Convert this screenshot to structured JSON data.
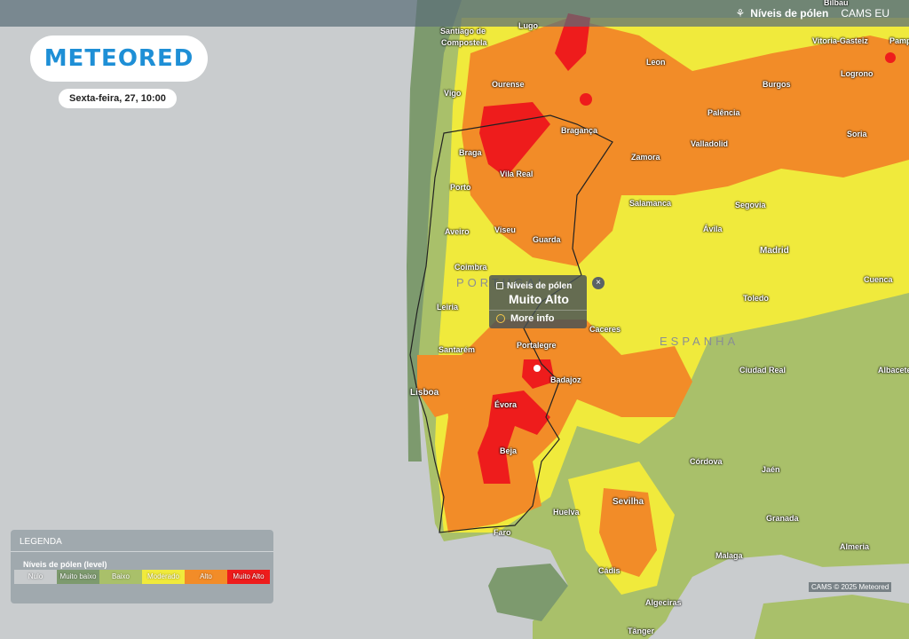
{
  "header": {
    "layer_name": "Níveis de pólen",
    "model": "CAMS EU",
    "pollen_icon": "pollen-icon"
  },
  "brand": {
    "logo": "METEORED"
  },
  "date_label": "Sexta-feira, 27, 10:00",
  "cities": [
    {
      "name": "Bilbau"
    },
    {
      "name": "Santiago de"
    },
    {
      "name": "Compostela"
    },
    {
      "name": "Lugo"
    },
    {
      "name": "Vitoria-Gasteiz"
    },
    {
      "name": "Pamp"
    },
    {
      "name": "Leon"
    },
    {
      "name": "Logrono"
    },
    {
      "name": "Ourense"
    },
    {
      "name": "Burgos"
    },
    {
      "name": "Vigo"
    },
    {
      "name": "Palência"
    },
    {
      "name": "Bragança"
    },
    {
      "name": "Soria"
    },
    {
      "name": "Valladolid"
    },
    {
      "name": "Braga"
    },
    {
      "name": "Zamora"
    },
    {
      "name": "Vila Real"
    },
    {
      "name": "Porto"
    },
    {
      "name": "Salamanca"
    },
    {
      "name": "Segovia"
    },
    {
      "name": "Aveiro"
    },
    {
      "name": "Viseu"
    },
    {
      "name": "Ávila"
    },
    {
      "name": "Guarda"
    },
    {
      "name": "Madrid"
    },
    {
      "name": "Coimbra"
    },
    {
      "name": "Cuenca"
    },
    {
      "name": "Toledo"
    },
    {
      "name": "Leiria"
    },
    {
      "name": "Caceres"
    },
    {
      "name": "Portalegre"
    },
    {
      "name": "Santarém"
    },
    {
      "name": "Ciudad Real"
    },
    {
      "name": "Albacete"
    },
    {
      "name": "Badajoz"
    },
    {
      "name": "Lisboa"
    },
    {
      "name": "Évora"
    },
    {
      "name": "Beja"
    },
    {
      "name": "Córdova"
    },
    {
      "name": "Jaén"
    },
    {
      "name": "Sevilha"
    },
    {
      "name": "Huelva"
    },
    {
      "name": "Granada"
    },
    {
      "name": "Faro"
    },
    {
      "name": "Almeria"
    },
    {
      "name": "Malaga"
    },
    {
      "name": "Cádis"
    },
    {
      "name": "Algeciras"
    },
    {
      "name": "Tânger"
    }
  ],
  "countries": {
    "portugal": "PORTUGAL",
    "spain": "ESPANHA"
  },
  "popup": {
    "title": "Níveis de pólen",
    "value": "Muito Alto",
    "more": "More info",
    "close": "×"
  },
  "legend": {
    "title": "LEGENDA",
    "subtitle": "Níveis de pólen (level)",
    "levels": [
      {
        "label": "Nulo",
        "color": "#c8cbcd"
      },
      {
        "label": "Muito baixo",
        "color": "#7d9a6e"
      },
      {
        "label": "Baixo",
        "color": "#a9c06a"
      },
      {
        "label": "Moderado",
        "color": "#f0ea3c"
      },
      {
        "label": "Alto",
        "color": "#f28c28"
      },
      {
        "label": "Muito Alto",
        "color": "#ee1c1c"
      }
    ]
  },
  "attribution": "CAMS © 2025 Meteored"
}
